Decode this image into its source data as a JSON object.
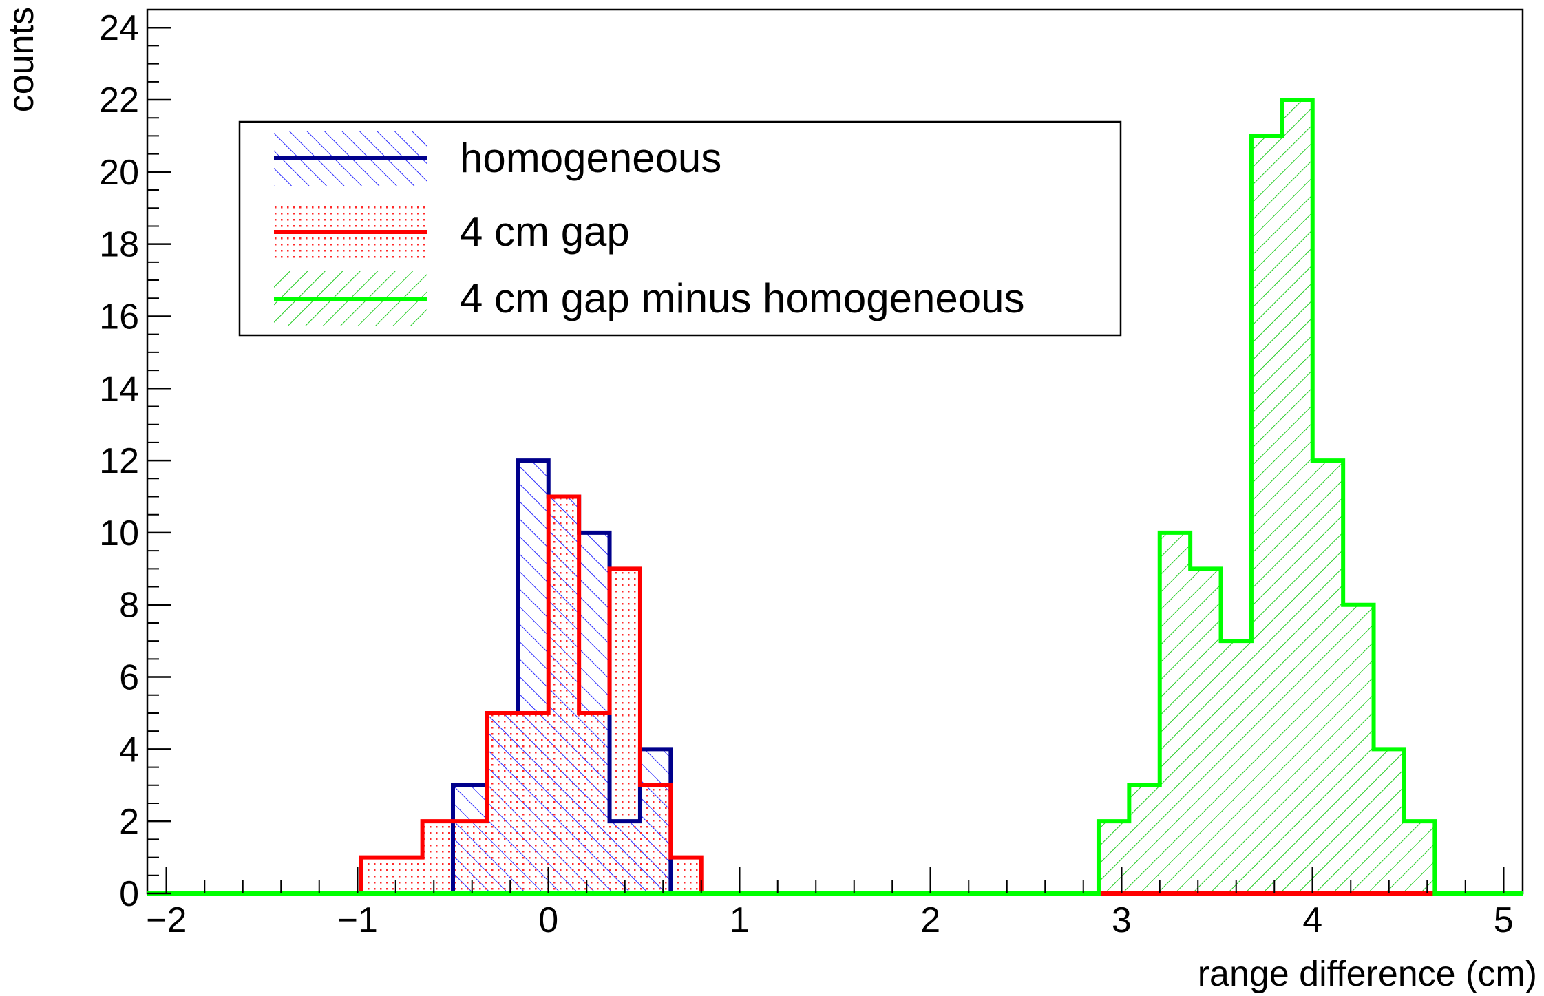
{
  "chart_data": {
    "type": "histogram",
    "xlabel": "range difference (cm)",
    "ylabel": "counts",
    "xlim": [
      -2.1,
      5.1
    ],
    "ylim": [
      0,
      24.5
    ],
    "x_ticks": [
      -2,
      -1,
      0,
      1,
      2,
      3,
      4,
      5
    ],
    "x_tick_labels": [
      "−2",
      "−1",
      "0",
      "1",
      "2",
      "3",
      "4",
      "5"
    ],
    "y_ticks": [
      0,
      2,
      4,
      6,
      8,
      10,
      12,
      14,
      16,
      18,
      20,
      22,
      24
    ],
    "y_tick_labels": [
      "0",
      "2",
      "4",
      "6",
      "8",
      "10",
      "12",
      "14",
      "16",
      "18",
      "20",
      "22",
      "24"
    ],
    "legend_position": "upper-left",
    "series": [
      {
        "name": "homogeneous",
        "color": "#00008b",
        "fill": "hatch-diagonal-up",
        "bins": [
          {
            "x0": -0.5,
            "x1": -0.32,
            "count": 3
          },
          {
            "x0": -0.32,
            "x1": -0.16,
            "count": 5
          },
          {
            "x0": -0.16,
            "x1": 0.0,
            "count": 12
          },
          {
            "x0": 0.0,
            "x1": 0.16,
            "count": 11
          },
          {
            "x0": 0.16,
            "x1": 0.32,
            "count": 10
          },
          {
            "x0": 0.32,
            "x1": 0.48,
            "count": 2
          },
          {
            "x0": 0.48,
            "x1": 0.64,
            "count": 4
          }
        ]
      },
      {
        "name": "4 cm gap",
        "color": "#ff0000",
        "fill": "dots",
        "bins": [
          {
            "x0": -0.98,
            "x1": -0.66,
            "count": 1
          },
          {
            "x0": -0.66,
            "x1": -0.5,
            "count": 2
          },
          {
            "x0": -0.5,
            "x1": -0.32,
            "count": 2
          },
          {
            "x0": -0.32,
            "x1": 0.0,
            "count": 5
          },
          {
            "x0": 0.0,
            "x1": 0.16,
            "count": 11
          },
          {
            "x0": 0.16,
            "x1": 0.32,
            "count": 5
          },
          {
            "x0": 0.32,
            "x1": 0.48,
            "count": 9
          },
          {
            "x0": 0.48,
            "x1": 0.64,
            "count": 3
          },
          {
            "x0": 0.64,
            "x1": 0.8,
            "count": 1
          }
        ]
      },
      {
        "name": "4 cm gap minus homogeneous",
        "color": "#00ff00",
        "fill": "hatch-diagonal-down",
        "bins": [
          {
            "x0": 2.88,
            "x1": 3.04,
            "count": 2
          },
          {
            "x0": 3.04,
            "x1": 3.2,
            "count": 3
          },
          {
            "x0": 3.2,
            "x1": 3.36,
            "count": 10
          },
          {
            "x0": 3.36,
            "x1": 3.52,
            "count": 9
          },
          {
            "x0": 3.52,
            "x1": 3.68,
            "count": 7
          },
          {
            "x0": 3.68,
            "x1": 3.84,
            "count": 21
          },
          {
            "x0": 3.84,
            "x1": 4.0,
            "count": 22
          },
          {
            "x0": 4.0,
            "x1": 4.16,
            "count": 12
          },
          {
            "x0": 4.16,
            "x1": 4.32,
            "count": 8
          },
          {
            "x0": 4.32,
            "x1": 4.48,
            "count": 4
          },
          {
            "x0": 4.48,
            "x1": 4.64,
            "count": 2
          }
        ]
      }
    ]
  }
}
